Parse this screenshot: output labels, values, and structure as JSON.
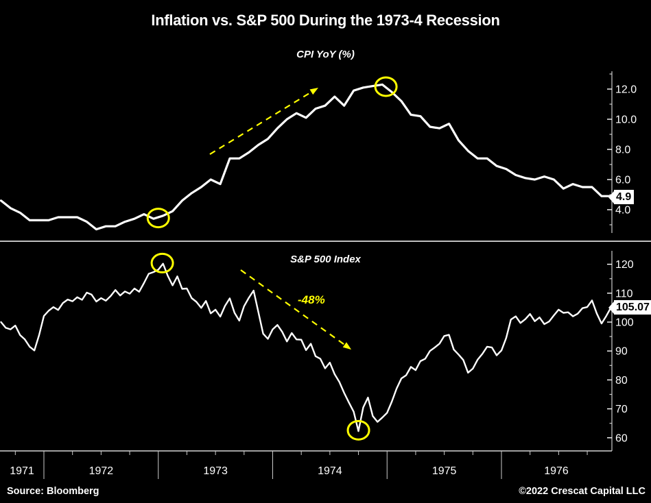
{
  "title": "Inflation vs. S&P 500 During the 1973-4 Recession",
  "footer": {
    "source": "Source: Bloomberg",
    "copyright": "©2022 Crescat Capital LLC"
  },
  "colors": {
    "background": "#000000",
    "line": "#ffffff",
    "annotation": "#ffff00",
    "axis": "#cccccc"
  },
  "xaxis": {
    "years": [
      "1971",
      "1972",
      "1973",
      "1974",
      "1975",
      "1976"
    ],
    "year_boundaries_decimal": [
      1972,
      1973,
      1974,
      1975,
      1976
    ],
    "range_decimal": [
      1971.625,
      1976.958
    ]
  },
  "chart_data": [
    {
      "type": "line",
      "title": "CPI YoY (%)",
      "series_name": "US CPI year-over-year percent, monthly",
      "x_start_decimal_year": 1971.625,
      "x_frequency": "monthly",
      "x_range": [
        "Aug 1971",
        "Dec 1976"
      ],
      "values": [
        4.6,
        4.1,
        3.8,
        3.3,
        3.3,
        3.3,
        3.5,
        3.5,
        3.5,
        3.2,
        2.7,
        2.9,
        2.9,
        3.2,
        3.4,
        3.7,
        3.4,
        3.6,
        3.9,
        4.6,
        5.1,
        5.5,
        6.0,
        5.7,
        7.4,
        7.4,
        7.8,
        8.3,
        8.7,
        9.4,
        10.0,
        10.4,
        10.1,
        10.7,
        10.9,
        11.5,
        10.9,
        11.9,
        12.1,
        12.2,
        12.3,
        11.8,
        11.2,
        10.3,
        10.2,
        9.5,
        9.4,
        9.7,
        8.6,
        7.9,
        7.4,
        7.4,
        6.9,
        6.7,
        6.3,
        6.1,
        6.0,
        6.2,
        6.0,
        5.4,
        5.7,
        5.5,
        5.5,
        4.9,
        4.9
      ],
      "ylim": [
        2.6,
        13.3
      ],
      "yticks_major": {
        "values": [
          4,
          6,
          8,
          10,
          12
        ],
        "labels": [
          "4.0",
          "6.0",
          "8.0",
          "10.0",
          "12.0"
        ]
      },
      "yticks_minor": [
        3,
        5,
        7,
        9,
        11,
        13
      ],
      "last_value_label": "4.9",
      "annotations": {
        "circles": [
          {
            "t": 1973.0,
            "v": 3.45
          },
          {
            "t": 1974.99,
            "v": 12.16
          }
        ],
        "arrow": {
          "from": {
            "t": 1973.451,
            "v": 7.68
          },
          "to": {
            "t": 1974.399,
            "v": 12.09
          }
        }
      }
    },
    {
      "type": "line",
      "title": "S&P 500 Index",
      "series_name": "S&P 500 Index level",
      "x_start_decimal_year": 1971.625,
      "x_end_decimal_year": 1976.958,
      "x_range": [
        "Aug 1971",
        "Dec 1976"
      ],
      "values": [
        100.0,
        98.0,
        97.5,
        98.8,
        95.5,
        94.0,
        91.5,
        90.2,
        95.5,
        102.1,
        103.9,
        105.2,
        104.2,
        106.6,
        107.8,
        107.2,
        108.6,
        107.7,
        110.2,
        109.5,
        107.1,
        108.3,
        107.4,
        109.0,
        111.1,
        109.2,
        110.6,
        109.8,
        111.6,
        110.5,
        113.5,
        116.7,
        117.3,
        118.1,
        120.2,
        116.0,
        112.7,
        115.8,
        111.5,
        111.6,
        108.3,
        107.0,
        104.9,
        107.3,
        103.0,
        104.3,
        101.9,
        105.6,
        108.2,
        103.2,
        100.5,
        105.5,
        108.4,
        110.9,
        103.5,
        96.0,
        94.2,
        97.5,
        99.0,
        96.6,
        93.3,
        96.2,
        94.0,
        93.9,
        90.3,
        92.5,
        88.2,
        87.3,
        84.0,
        86.0,
        82.0,
        79.3,
        75.5,
        72.2,
        69.0,
        62.3,
        70.5,
        73.9,
        67.5,
        65.5,
        67.0,
        68.6,
        72.5,
        77.0,
        80.5,
        81.6,
        84.5,
        83.4,
        86.5,
        87.3,
        90.0,
        91.2,
        92.5,
        95.2,
        95.6,
        90.5,
        88.8,
        86.9,
        82.5,
        83.9,
        87.0,
        89.0,
        91.5,
        91.2,
        88.5,
        90.2,
        94.5,
        100.9,
        102.0,
        99.7,
        101.0,
        102.8,
        100.3,
        101.6,
        99.3,
        100.2,
        102.3,
        104.3,
        103.2,
        103.4,
        102.0,
        102.9,
        104.8,
        105.2,
        107.5,
        103.0,
        99.5,
        102.1,
        105.07
      ],
      "ylim": [
        58,
        124
      ],
      "yticks_major": {
        "values": [
          60,
          70,
          80,
          90,
          100,
          110,
          120
        ],
        "labels": [
          "60",
          "70",
          "80",
          "90",
          "100",
          "110",
          "120"
        ]
      },
      "yticks_minor": [
        65,
        75,
        85,
        95,
        105,
        115
      ],
      "last_value_label": "105.07",
      "annotations": {
        "circles": [
          {
            "t": 1973.035,
            "v": 120.4
          },
          {
            "t": 1974.75,
            "v": 62.6
          }
        ],
        "arrow": {
          "from": {
            "t": 1973.721,
            "v": 118.0
          },
          "to": {
            "t": 1974.687,
            "v": 90.5
          }
        },
        "label": {
          "text": "-48%",
          "t": 1974.39,
          "v": 107.1
        }
      }
    }
  ]
}
